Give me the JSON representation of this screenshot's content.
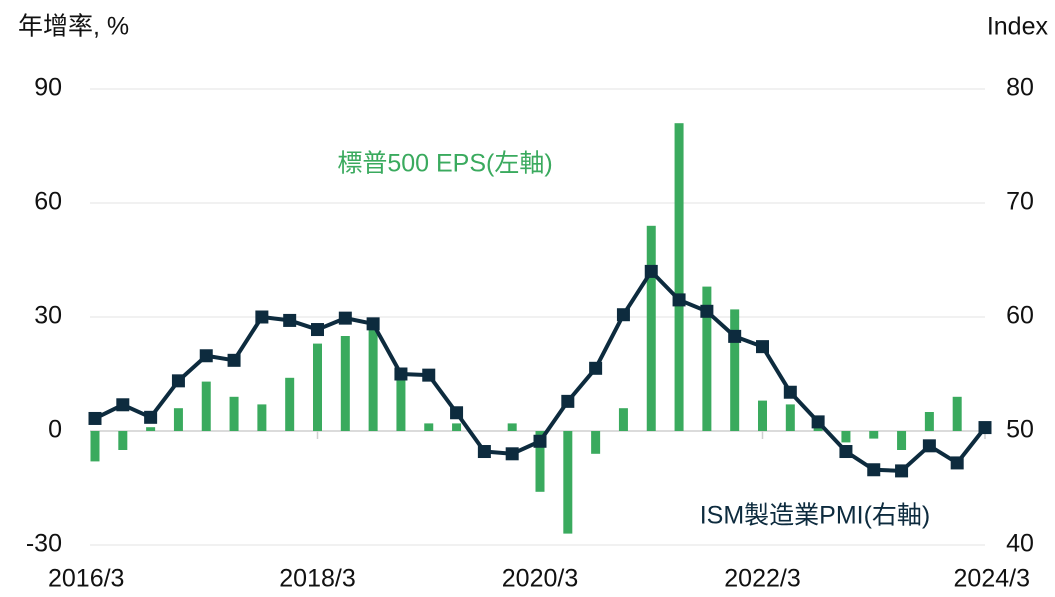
{
  "chart_data": {
    "type": "bar_line",
    "y_label": "年增率, %",
    "y2_label": "Index",
    "categories": [
      "2016/3",
      null,
      null,
      null,
      null,
      null,
      null,
      null,
      "2018/3",
      null,
      null,
      null,
      null,
      null,
      null,
      null,
      "2020/3",
      null,
      null,
      null,
      null,
      null,
      null,
      null,
      "2022/3",
      null,
      null,
      null,
      null,
      null,
      null,
      null,
      "2024/3"
    ],
    "series": [
      {
        "name": "標普500 EPS(左軸)",
        "type": "bar",
        "color": "#3aaa5e",
        "values": [
          -8,
          -5,
          1,
          6,
          13,
          9,
          7,
          14,
          23,
          25,
          28,
          14,
          2,
          2,
          0,
          2,
          -16,
          -27,
          -6,
          6,
          54,
          81,
          38,
          32,
          8,
          7,
          2,
          -3,
          -2,
          -5,
          5,
          9,
          1
        ]
      },
      {
        "name": "ISM製造業PMI(右軸)",
        "type": "line",
        "axis": "y2",
        "color": "#0d2b3e",
        "values": [
          51.1,
          52.3,
          51.2,
          54.4,
          56.6,
          56.2,
          60.0,
          59.7,
          58.9,
          59.9,
          59.4,
          55.0,
          54.9,
          51.6,
          48.2,
          48.0,
          49.1,
          52.6,
          55.5,
          60.2,
          64.0,
          61.5,
          60.5,
          58.3,
          57.4,
          53.4,
          50.8,
          48.2,
          46.6,
          46.5,
          48.7,
          47.2,
          50.3
        ]
      }
    ],
    "ylim": [
      -30,
      90
    ],
    "yticks": [
      -30,
      0,
      30,
      60,
      90
    ],
    "y2lim": [
      40,
      80
    ],
    "y2ticks": [
      40,
      50,
      60,
      70,
      80
    ],
    "grid": true
  }
}
